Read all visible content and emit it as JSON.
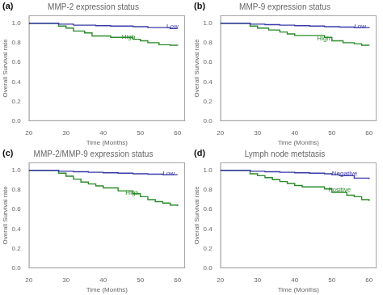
{
  "chart_data": [
    {
      "type": "line",
      "panel_label": "(a)",
      "title": "MMP-2 expression status",
      "xlabel": "Time (Months)",
      "ylabel": "Overall Survival rate",
      "xlim": [
        20,
        62
      ],
      "xticks": [
        20,
        30,
        40,
        50,
        60
      ],
      "ylim": [
        0.0,
        1.08
      ],
      "yticks": [
        {
          "value": 0.0,
          "label": "0.0"
        },
        0.2,
        0.4,
        0.6,
        0.8,
        {
          "value": 1.0,
          "label": "1.0"
        }
      ],
      "grid": false,
      "series": [
        {
          "x": [
            20,
            28,
            32,
            38,
            42,
            48,
            52,
            58,
            60
          ],
          "values": [
            1.0,
            0.99,
            0.98,
            0.975,
            0.97,
            0.965,
            0.955,
            0.945,
            0.945
          ],
          "color": "#3a3aaa",
          "line_style": "steps"
        },
        {
          "x": [
            20,
            28,
            30,
            32,
            35,
            37,
            42,
            48,
            50,
            52,
            55,
            58,
            60
          ],
          "values": [
            1.0,
            0.97,
            0.95,
            0.92,
            0.9,
            0.87,
            0.855,
            0.835,
            0.82,
            0.8,
            0.78,
            0.775,
            0.77
          ],
          "color": "#2a8a2a",
          "line_style": "steps"
        }
      ],
      "annotations": [
        {
          "text": "Low",
          "x": 57,
          "y": 0.965,
          "color": "#3a3aaa"
        },
        {
          "text": "High",
          "x": 45,
          "y": 0.855,
          "color": "#2a8a2a"
        }
      ]
    },
    {
      "type": "line",
      "panel_label": "(b)",
      "title": "MMP-9 expression status",
      "xlabel": "Time (Months)",
      "ylabel": "Overall Survival rate",
      "xlim": [
        20,
        62
      ],
      "xticks": [
        20,
        30,
        40,
        50,
        60
      ],
      "ylim": [
        0.0,
        1.08
      ],
      "yticks": [
        {
          "value": 0.0,
          "label": "0.0"
        },
        0.2,
        0.4,
        0.6,
        0.8,
        {
          "value": 1.0,
          "label": "1.0"
        }
      ],
      "grid": false,
      "series": [
        {
          "x": [
            20,
            28,
            32,
            36,
            40,
            44,
            48,
            52,
            56,
            60
          ],
          "values": [
            1.0,
            0.99,
            0.985,
            0.98,
            0.975,
            0.97,
            0.965,
            0.96,
            0.955,
            0.95
          ],
          "color": "#3a3aaa",
          "line_style": "steps"
        },
        {
          "x": [
            20,
            28,
            30,
            33,
            36,
            38,
            40,
            48,
            50,
            53,
            56,
            58,
            60
          ],
          "values": [
            1.0,
            0.97,
            0.95,
            0.93,
            0.91,
            0.89,
            0.875,
            0.855,
            0.82,
            0.8,
            0.79,
            0.775,
            0.77
          ],
          "color": "#2a8a2a",
          "line_style": "steps"
        }
      ],
      "annotations": [
        {
          "text": "Low",
          "x": 56,
          "y": 0.965,
          "color": "#3a3aaa"
        },
        {
          "text": "High",
          "x": 46,
          "y": 0.845,
          "color": "#2a8a2a"
        }
      ]
    },
    {
      "type": "line",
      "panel_label": "(c)",
      "title": "MMP-2/MMP-9 expression status",
      "xlabel": "Time (Months)",
      "ylabel": "Overall Survival rate",
      "xlim": [
        20,
        62
      ],
      "xticks": [
        20,
        30,
        40,
        50,
        60
      ],
      "ylim": [
        0.0,
        1.08
      ],
      "yticks": [
        {
          "value": 0.0,
          "label": "0.0"
        },
        0.2,
        0.4,
        0.6,
        0.8,
        {
          "value": 1.0,
          "label": "1.0"
        }
      ],
      "grid": false,
      "series": [
        {
          "x": [
            20,
            28,
            32,
            36,
            40,
            44,
            48,
            52,
            56,
            60
          ],
          "values": [
            1.0,
            0.99,
            0.985,
            0.98,
            0.975,
            0.97,
            0.965,
            0.96,
            0.955,
            0.955
          ],
          "color": "#3a3aaa",
          "line_style": "steps"
        },
        {
          "x": [
            20,
            28,
            30,
            32,
            34,
            36,
            38,
            40,
            44,
            48,
            50,
            52,
            54,
            56,
            58,
            60
          ],
          "values": [
            1.0,
            0.97,
            0.94,
            0.91,
            0.88,
            0.86,
            0.84,
            0.82,
            0.79,
            0.76,
            0.73,
            0.7,
            0.68,
            0.665,
            0.645,
            0.635
          ],
          "color": "#2a8a2a",
          "line_style": "steps"
        }
      ],
      "annotations": [
        {
          "text": "Low",
          "x": 56,
          "y": 0.97,
          "color": "#3a3aaa"
        },
        {
          "text": "High",
          "x": 46,
          "y": 0.77,
          "color": "#2a8a2a"
        }
      ]
    },
    {
      "type": "line",
      "panel_label": "(d)",
      "title": "Lymph node metstasis",
      "xlabel": "Time (Months)",
      "ylabel": "Overall Survival rate",
      "xlim": [
        20,
        62
      ],
      "xticks": [
        20,
        30,
        40,
        50,
        60
      ],
      "ylim": [
        0.0,
        1.08
      ],
      "yticks": [
        {
          "value": 0.0,
          "label": "0.0"
        },
        0.2,
        0.4,
        0.6,
        0.8,
        {
          "value": 1.0,
          "label": "1.0"
        }
      ],
      "grid": false,
      "series": [
        {
          "x": [
            20,
            28,
            32,
            36,
            40,
            44,
            48,
            50,
            52,
            56,
            60
          ],
          "values": [
            1.0,
            0.99,
            0.985,
            0.98,
            0.975,
            0.97,
            0.965,
            0.955,
            0.945,
            0.92,
            0.91
          ],
          "color": "#3a3aaa",
          "line_style": "steps"
        },
        {
          "x": [
            20,
            28,
            30,
            32,
            34,
            36,
            38,
            40,
            42,
            48,
            50,
            54,
            56,
            58,
            60
          ],
          "values": [
            1.0,
            0.965,
            0.945,
            0.925,
            0.905,
            0.885,
            0.865,
            0.845,
            0.83,
            0.81,
            0.775,
            0.745,
            0.73,
            0.7,
            0.685
          ],
          "color": "#2a8a2a",
          "line_style": "steps"
        }
      ],
      "annotations": [
        {
          "text": "Negative",
          "x": 50,
          "y": 0.965,
          "color": "#3a3aaa"
        },
        {
          "text": "Positive",
          "x": 49,
          "y": 0.8,
          "color": "#2a8a2a"
        }
      ]
    }
  ]
}
